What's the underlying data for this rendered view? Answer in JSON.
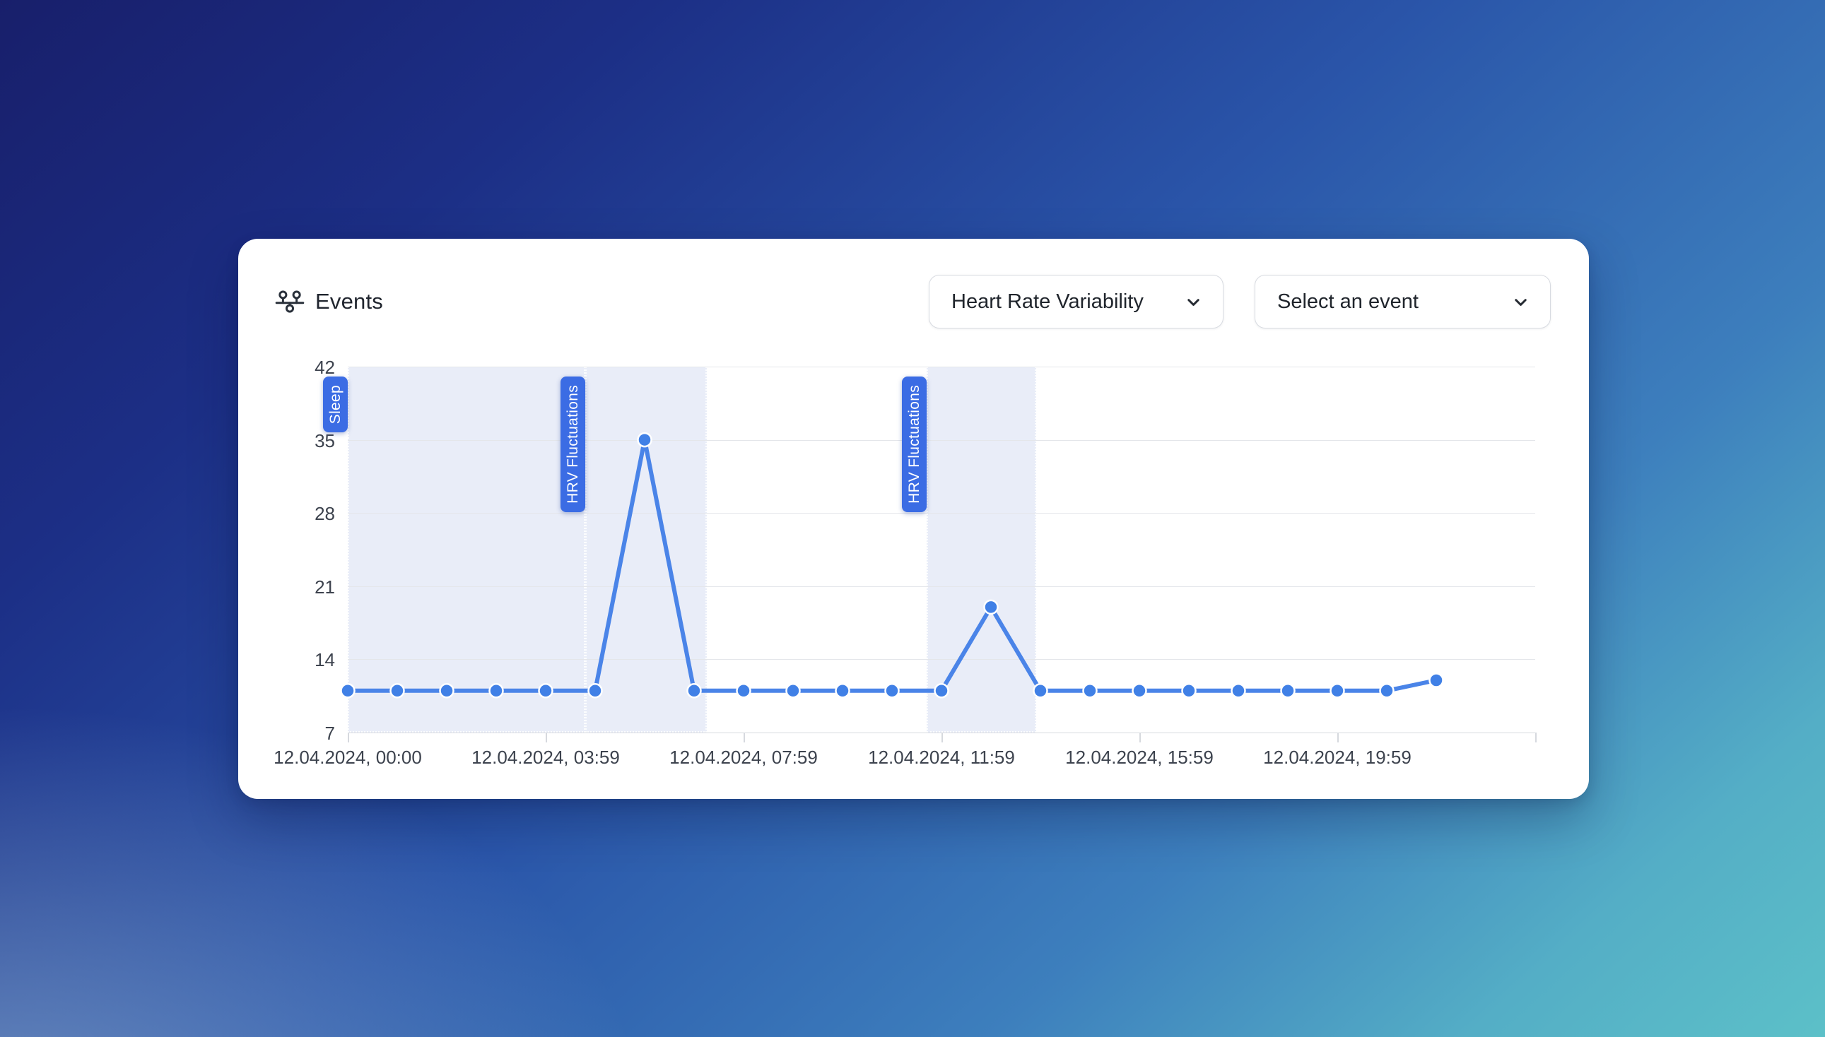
{
  "header": {
    "title": "Events"
  },
  "controls": {
    "metric_dropdown": {
      "value": "Heart Rate Variability",
      "icon": "chevron-down"
    },
    "event_dropdown": {
      "placeholder": "Select an event",
      "icon": "chevron-down"
    }
  },
  "chart_data": {
    "type": "line",
    "title": "Events timeline for Heart Rate Variability",
    "x_axis": {
      "range_hours": [
        0,
        24
      ],
      "tick_hours": [
        0,
        4,
        8,
        12,
        16,
        20,
        24
      ],
      "tick_labels": [
        "12.04.2024, 00:00",
        "12.04.2024, 03:59",
        "12.04.2024, 07:59",
        "12.04.2024, 11:59",
        "12.04.2024, 15:59",
        "12.04.2024, 19:59",
        ""
      ]
    },
    "y_axis": {
      "range": [
        7,
        42
      ],
      "ticks": [
        7,
        14,
        21,
        28,
        35,
        42
      ]
    },
    "series": [
      {
        "name": "Heart Rate Variability",
        "hours": [
          0,
          1,
          2,
          3,
          4,
          5,
          6,
          7,
          8,
          9,
          10,
          11,
          12,
          13,
          14,
          15,
          16,
          17,
          18,
          19,
          20,
          21,
          22
        ],
        "values": [
          11,
          11,
          11,
          11,
          11,
          11,
          35,
          11,
          11,
          11,
          11,
          11,
          11,
          19,
          11,
          11,
          11,
          11,
          11,
          11,
          11,
          11,
          12
        ]
      }
    ],
    "regions": [
      {
        "label": "Sleep",
        "start_hour": 0,
        "end_hour": 4.8
      },
      {
        "label": "HRV Fluctuations",
        "start_hour": 4.8,
        "end_hour": 7.25
      },
      {
        "label": "HRV Fluctuations",
        "start_hour": 11.7,
        "end_hour": 13.92
      }
    ],
    "grid": true,
    "legend": false,
    "colors": {
      "line": "#4a84e8",
      "point": "#4080e6",
      "point_ring": "#ffffff",
      "region_fill": "#e9edf8",
      "badge": "#3b6ce4",
      "badge_text": "#ffffff",
      "gridline": "#e4e6ea",
      "axis_text": "#3d434e"
    }
  }
}
